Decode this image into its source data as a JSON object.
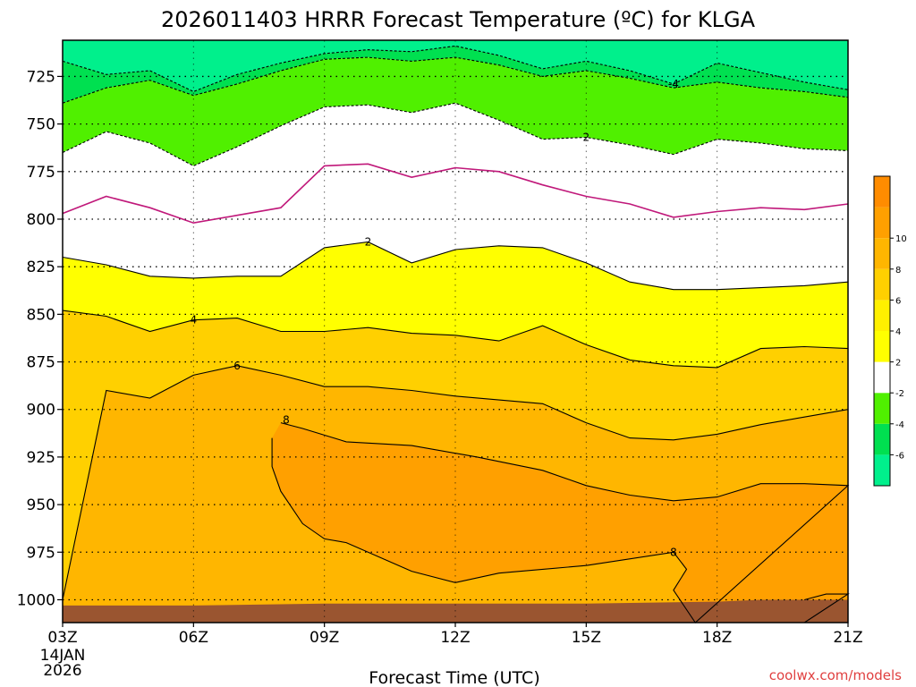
{
  "chart_data": {
    "type": "contour",
    "title": "2026011403 HRRR Forecast Temperature (ºC) for KLGA",
    "xlabel": "Forecast Time (UTC)",
    "ylabel": "",
    "credit": "coolwx.com/models",
    "date_label": [
      "14JAN",
      "2026"
    ],
    "x_hours": [
      3,
      4,
      5,
      6,
      7,
      8,
      9,
      10,
      11,
      12,
      13,
      14,
      15,
      16,
      17,
      18,
      19,
      20,
      21
    ],
    "x_ticks": [
      {
        "hour": 3,
        "label": "03Z"
      },
      {
        "hour": 6,
        "label": "06Z"
      },
      {
        "hour": 9,
        "label": "09Z"
      },
      {
        "hour": 12,
        "label": "12Z"
      },
      {
        "hour": 15,
        "label": "15Z"
      },
      {
        "hour": 18,
        "label": "18Z"
      },
      {
        "hour": 21,
        "label": "21Z"
      }
    ],
    "y_axis": {
      "unit": "hPa",
      "top": 706,
      "bottom": 1012,
      "reversed": true
    },
    "y_ticks": [
      725,
      750,
      775,
      800,
      825,
      850,
      875,
      900,
      925,
      950,
      975,
      1000
    ],
    "grid": true,
    "colorbar": {
      "placement": "right",
      "levels": [
        -8,
        -6,
        -4,
        -2,
        2,
        4,
        6,
        8,
        10,
        12
      ],
      "tick_labels": [
        "-6",
        "-4",
        "-2",
        "2",
        "4",
        "6",
        "8",
        "10"
      ],
      "colors": [
        "#00f08c",
        "#00e050",
        "#50f000",
        "#ffffff",
        "#ffff00",
        "#fff000",
        "#ffd000",
        "#ffb600",
        "#ffa000",
        "#ff8c00"
      ]
    },
    "ground_color": "#9a5530",
    "contours": [
      {
        "level": -4,
        "label": "-4",
        "label_at": 17,
        "pressure": [
          717,
          724,
          722,
          733,
          724,
          718,
          713,
          711,
          712,
          709,
          714,
          721,
          717,
          722,
          729,
          718,
          723,
          728,
          732
        ]
      },
      {
        "level": -2,
        "label": "",
        "label_at": null,
        "pressure": [
          739,
          731,
          727,
          735,
          729,
          722,
          716,
          715,
          717,
          715,
          719,
          725,
          722,
          726,
          731,
          728,
          731,
          733,
          736
        ]
      },
      {
        "level": 2,
        "label": "2",
        "label_at": 15,
        "pressure": [
          765,
          754,
          760,
          772,
          762,
          751,
          741,
          740,
          744,
          739,
          748,
          758,
          757,
          761,
          766,
          758,
          760,
          763,
          764
        ]
      },
      {
        "level": 2,
        "label": "",
        "label_at": null,
        "pressure": [
          797,
          788,
          794,
          802,
          798,
          794,
          772,
          771,
          778,
          773,
          775,
          782,
          788,
          792,
          799,
          796,
          794,
          795,
          792
        ]
      },
      {
        "level": 2,
        "label": "2",
        "label_at": 10,
        "pressure": [
          820,
          824,
          830,
          831,
          830,
          830,
          815,
          812,
          823,
          816,
          814,
          815,
          823,
          833,
          837,
          837,
          836,
          835,
          833
        ]
      },
      {
        "level": 4,
        "label": "4",
        "label_at": 6,
        "pressure": [
          848,
          851,
          859,
          853,
          852,
          859,
          859,
          857,
          860,
          861,
          864,
          856,
          866,
          874,
          877,
          878,
          868,
          867,
          868
        ]
      },
      {
        "level": 6,
        "label": "6",
        "label_at": 7,
        "pressure": [
          1000,
          890,
          894,
          882,
          877,
          882,
          888,
          888,
          890,
          893,
          895,
          897,
          907,
          915,
          916,
          913,
          908,
          904,
          900
        ]
      }
    ],
    "regions_8C": [
      {
        "level": 8,
        "label": "8",
        "label_at": 8,
        "outline": [
          [
            8,
            907
          ],
          [
            8.5,
            910
          ],
          [
            9.5,
            917
          ],
          [
            11,
            919
          ],
          [
            12.5,
            925
          ],
          [
            14,
            932
          ],
          [
            15,
            940
          ],
          [
            16,
            945
          ],
          [
            17,
            948
          ],
          [
            18,
            946
          ],
          [
            19,
            939
          ],
          [
            20,
            939
          ],
          [
            21,
            940
          ],
          [
            21,
            1012
          ],
          [
            17.5,
            1012
          ],
          [
            17,
            995
          ],
          [
            17.3,
            984
          ],
          [
            17,
            975
          ],
          [
            15,
            982
          ],
          [
            13,
            986
          ],
          [
            12,
            991
          ],
          [
            11,
            985
          ],
          [
            9.5,
            970
          ],
          [
            9,
            968
          ],
          [
            8.5,
            960
          ],
          [
            8,
            943
          ],
          [
            7.8,
            930
          ],
          [
            7.8,
            915
          ]
        ]
      },
      {
        "level": 8,
        "label": "",
        "label_at": null,
        "outline": [
          [
            20,
            1000
          ],
          [
            20.5,
            997
          ],
          [
            21,
            997
          ],
          [
            21,
            1012
          ],
          [
            20,
            1012
          ]
        ]
      }
    ]
  }
}
